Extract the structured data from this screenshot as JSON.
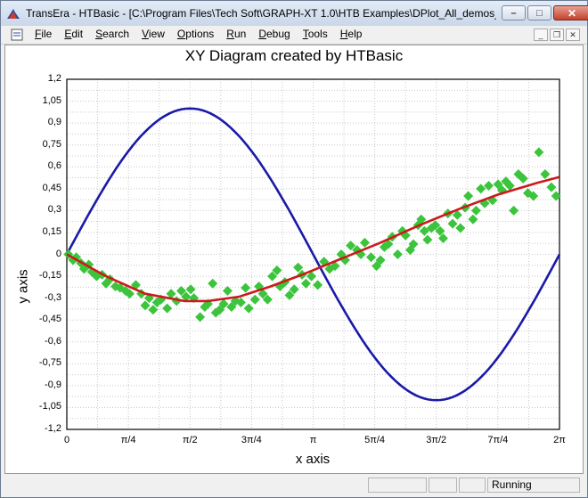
{
  "window": {
    "title": "TransEra - HTBasic - [C:\\Program Files\\Tech Soft\\GRAPH-XT 1.0\\HTB Examples\\DPlot_All_demos_...",
    "minimize": "–",
    "maximize": "□",
    "close": "✕"
  },
  "menu": [
    "File",
    "Edit",
    "Search",
    "View",
    "Options",
    "Run",
    "Debug",
    "Tools",
    "Help"
  ],
  "mdi": {
    "minimize": "_",
    "restore": "❐",
    "close": "✕"
  },
  "status": {
    "state": "Running"
  },
  "colors": {
    "sine": "#1a1aa8",
    "fit": "#cc1a1a",
    "points": "#3cc43c"
  },
  "chart_data": {
    "type": "scatter",
    "title": "XY Diagram created by HTBasic",
    "xlabel": "x axis",
    "ylabel": "y axis",
    "xlim": [
      0,
      6.2832
    ],
    "ylim": [
      -1.2,
      1.2
    ],
    "grid": true,
    "xticks": [
      "0",
      "π/4",
      "π/2",
      "3π/4",
      "π",
      "5π/4",
      "3π/2",
      "7π/4",
      "2π"
    ],
    "yticks": [
      "1,2",
      "1,05",
      "0,9",
      "0,75",
      "0,6",
      "0,45",
      "0,3",
      "0,15",
      "0",
      "-0,15",
      "-0,3",
      "-0,45",
      "-0,6",
      "-0,75",
      "-0,9",
      "-1,05",
      "-1,2"
    ],
    "series": [
      {
        "kind": "line",
        "color": "#1a1aa8",
        "function": "sin(x)"
      },
      {
        "kind": "line",
        "color": "#cc1a1a",
        "values_fit": [
          [
            0,
            0
          ],
          [
            0.5,
            -0.15
          ],
          [
            1.0,
            -0.27
          ],
          [
            1.5,
            -0.32
          ],
          [
            1.8,
            -0.32
          ],
          [
            2.2,
            -0.29
          ],
          [
            2.6,
            -0.22
          ],
          [
            3.0,
            -0.14
          ],
          [
            3.5,
            -0.03
          ],
          [
            4.0,
            0.08
          ],
          [
            4.5,
            0.2
          ],
          [
            5.0,
            0.31
          ],
          [
            5.5,
            0.41
          ],
          [
            6.0,
            0.49
          ],
          [
            6.28,
            0.53
          ]
        ]
      },
      {
        "kind": "scatter",
        "color": "#3cc43c",
        "points": [
          [
            0.02,
            0.0
          ],
          [
            0.08,
            -0.04
          ],
          [
            0.12,
            -0.02
          ],
          [
            0.18,
            -0.06
          ],
          [
            0.22,
            -0.1
          ],
          [
            0.28,
            -0.07
          ],
          [
            0.32,
            -0.12
          ],
          [
            0.38,
            -0.15
          ],
          [
            0.45,
            -0.14
          ],
          [
            0.5,
            -0.2
          ],
          [
            0.55,
            -0.17
          ],
          [
            0.62,
            -0.22
          ],
          [
            0.68,
            -0.23
          ],
          [
            0.75,
            -0.25
          ],
          [
            0.8,
            -0.27
          ],
          [
            0.88,
            -0.21
          ],
          [
            0.95,
            -0.27
          ],
          [
            1.0,
            -0.35
          ],
          [
            1.05,
            -0.3
          ],
          [
            1.1,
            -0.38
          ],
          [
            1.15,
            -0.33
          ],
          [
            1.2,
            -0.31
          ],
          [
            1.28,
            -0.37
          ],
          [
            1.33,
            -0.27
          ],
          [
            1.4,
            -0.32
          ],
          [
            1.46,
            -0.25
          ],
          [
            1.52,
            -0.29
          ],
          [
            1.58,
            -0.24
          ],
          [
            1.62,
            -0.3
          ],
          [
            1.7,
            -0.43
          ],
          [
            1.76,
            -0.36
          ],
          [
            1.8,
            -0.34
          ],
          [
            1.86,
            -0.2
          ],
          [
            1.9,
            -0.4
          ],
          [
            1.95,
            -0.38
          ],
          [
            2.0,
            -0.34
          ],
          [
            2.05,
            -0.25
          ],
          [
            2.1,
            -0.36
          ],
          [
            2.15,
            -0.32
          ],
          [
            2.22,
            -0.33
          ],
          [
            2.28,
            -0.23
          ],
          [
            2.32,
            -0.37
          ],
          [
            2.4,
            -0.31
          ],
          [
            2.45,
            -0.22
          ],
          [
            2.5,
            -0.27
          ],
          [
            2.56,
            -0.31
          ],
          [
            2.62,
            -0.15
          ],
          [
            2.68,
            -0.11
          ],
          [
            2.72,
            -0.22
          ],
          [
            2.78,
            -0.19
          ],
          [
            2.84,
            -0.28
          ],
          [
            2.9,
            -0.24
          ],
          [
            2.95,
            -0.09
          ],
          [
            3.0,
            -0.14
          ],
          [
            3.05,
            -0.2
          ],
          [
            3.12,
            -0.15
          ],
          [
            3.2,
            -0.21
          ],
          [
            3.28,
            -0.05
          ],
          [
            3.35,
            -0.1
          ],
          [
            3.42,
            -0.08
          ],
          [
            3.5,
            0.0
          ],
          [
            3.55,
            -0.04
          ],
          [
            3.62,
            0.06
          ],
          [
            3.7,
            0.03
          ],
          [
            3.75,
            0.0
          ],
          [
            3.8,
            0.08
          ],
          [
            3.88,
            -0.02
          ],
          [
            3.95,
            -0.08
          ],
          [
            4.0,
            -0.04
          ],
          [
            4.05,
            0.05
          ],
          [
            4.1,
            0.07
          ],
          [
            4.15,
            0.12
          ],
          [
            4.22,
            0.0
          ],
          [
            4.28,
            0.16
          ],
          [
            4.32,
            0.13
          ],
          [
            4.38,
            0.03
          ],
          [
            4.42,
            0.07
          ],
          [
            4.48,
            0.2
          ],
          [
            4.52,
            0.24
          ],
          [
            4.56,
            0.16
          ],
          [
            4.6,
            0.1
          ],
          [
            4.65,
            0.18
          ],
          [
            4.7,
            0.2
          ],
          [
            4.76,
            0.16
          ],
          [
            4.8,
            0.11
          ],
          [
            4.86,
            0.28
          ],
          [
            4.92,
            0.21
          ],
          [
            4.98,
            0.27
          ],
          [
            5.02,
            0.18
          ],
          [
            5.08,
            0.32
          ],
          [
            5.12,
            0.4
          ],
          [
            5.18,
            0.24
          ],
          [
            5.22,
            0.3
          ],
          [
            5.28,
            0.45
          ],
          [
            5.33,
            0.35
          ],
          [
            5.38,
            0.47
          ],
          [
            5.43,
            0.37
          ],
          [
            5.5,
            0.48
          ],
          [
            5.55,
            0.44
          ],
          [
            5.6,
            0.5
          ],
          [
            5.65,
            0.47
          ],
          [
            5.7,
            0.3
          ],
          [
            5.76,
            0.55
          ],
          [
            5.82,
            0.52
          ],
          [
            5.88,
            0.42
          ],
          [
            5.95,
            0.4
          ],
          [
            6.02,
            0.7
          ],
          [
            6.1,
            0.55
          ],
          [
            6.18,
            0.46
          ],
          [
            6.24,
            0.4
          ]
        ]
      }
    ]
  }
}
